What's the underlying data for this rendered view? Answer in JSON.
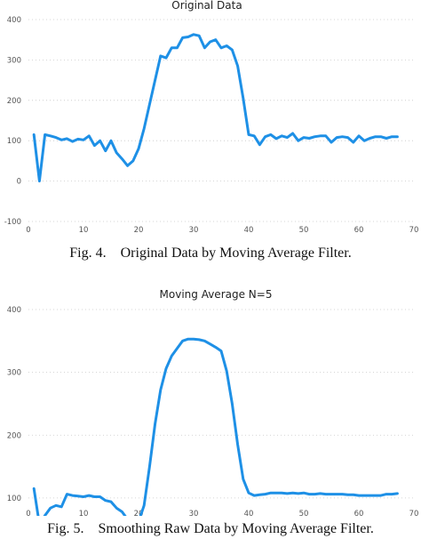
{
  "chart_data": [
    {
      "type": "line",
      "title": "Original Data",
      "caption": "Fig. 4.    Original Data by Moving Average Filter.",
      "xlim": [
        0,
        70
      ],
      "ylim": [
        -100,
        400
      ],
      "xticks": [
        "0",
        "10",
        "20",
        "30",
        "40",
        "50",
        "60",
        "70"
      ],
      "yticks": [
        "-100",
        "0",
        "100",
        "200",
        "300",
        "400"
      ],
      "grid": true,
      "color": "#1e90e6",
      "series": [
        {
          "x": [
            1,
            2,
            3,
            4,
            5,
            6,
            7,
            8,
            9,
            10,
            11,
            12,
            13,
            14,
            15,
            16,
            17,
            18,
            19,
            20,
            21,
            22,
            23,
            24,
            25,
            26,
            27,
            28,
            29,
            30,
            31,
            32,
            33,
            34,
            35,
            36,
            37,
            38,
            39,
            40,
            41,
            42,
            43,
            44,
            45,
            46,
            47,
            48,
            49,
            50,
            51,
            52,
            53,
            54,
            55,
            56,
            57,
            58,
            59,
            60,
            61,
            62,
            63,
            64,
            65,
            66,
            67
          ],
          "y": [
            115,
            0,
            115,
            112,
            108,
            102,
            105,
            98,
            104,
            102,
            112,
            88,
            100,
            75,
            100,
            70,
            55,
            38,
            50,
            80,
            130,
            190,
            250,
            310,
            305,
            330,
            330,
            355,
            357,
            363,
            360,
            330,
            345,
            350,
            330,
            335,
            325,
            285,
            205,
            115,
            112,
            90,
            110,
            115,
            105,
            112,
            108,
            118,
            100,
            108,
            106,
            110,
            112,
            112,
            96,
            108,
            110,
            108,
            96,
            112,
            100,
            106,
            110,
            110,
            106,
            110,
            110
          ]
        }
      ]
    },
    {
      "type": "line",
      "title": "Moving Average N=5",
      "caption": "Fig. 5.    Smoothing Raw Data by Moving Average Filter.",
      "xlim": [
        0,
        70
      ],
      "ylim": [
        80,
        400
      ],
      "xticks": [
        "0",
        "10",
        "20",
        "30",
        "40",
        "50",
        "60",
        "70"
      ],
      "yticks": [
        "100",
        "200",
        "300",
        "400"
      ],
      "grid": true,
      "color": "#1e90e6",
      "series": [
        {
          "x": [
            1,
            2,
            3,
            4,
            5,
            6,
            7,
            8,
            9,
            10,
            11,
            12,
            13,
            14,
            15,
            16,
            17,
            18,
            19,
            20,
            21,
            22,
            23,
            24,
            25,
            26,
            27,
            28,
            29,
            30,
            31,
            32,
            33,
            34,
            35,
            36,
            37,
            38,
            39,
            40,
            41,
            42,
            43,
            44,
            45,
            46,
            47,
            48,
            49,
            50,
            51,
            52,
            53,
            54,
            55,
            56,
            57,
            58,
            59,
            60,
            61,
            62,
            63,
            64,
            65,
            66,
            67
          ],
          "y": [
            115,
            58,
            72,
            84,
            88,
            86,
            106,
            104,
            103,
            102,
            104,
            102,
            102,
            96,
            94,
            84,
            78,
            66,
            58,
            62,
            88,
            150,
            218,
            272,
            306,
            326,
            338,
            350,
            353,
            353,
            352,
            350,
            345,
            340,
            334,
            302,
            250,
            185,
            130,
            108,
            104,
            105,
            106,
            108,
            108,
            108,
            107,
            108,
            107,
            108,
            106,
            106,
            107,
            106,
            106,
            106,
            106,
            105,
            105,
            104,
            104,
            104,
            104,
            104,
            106,
            106,
            107
          ]
        }
      ]
    }
  ]
}
